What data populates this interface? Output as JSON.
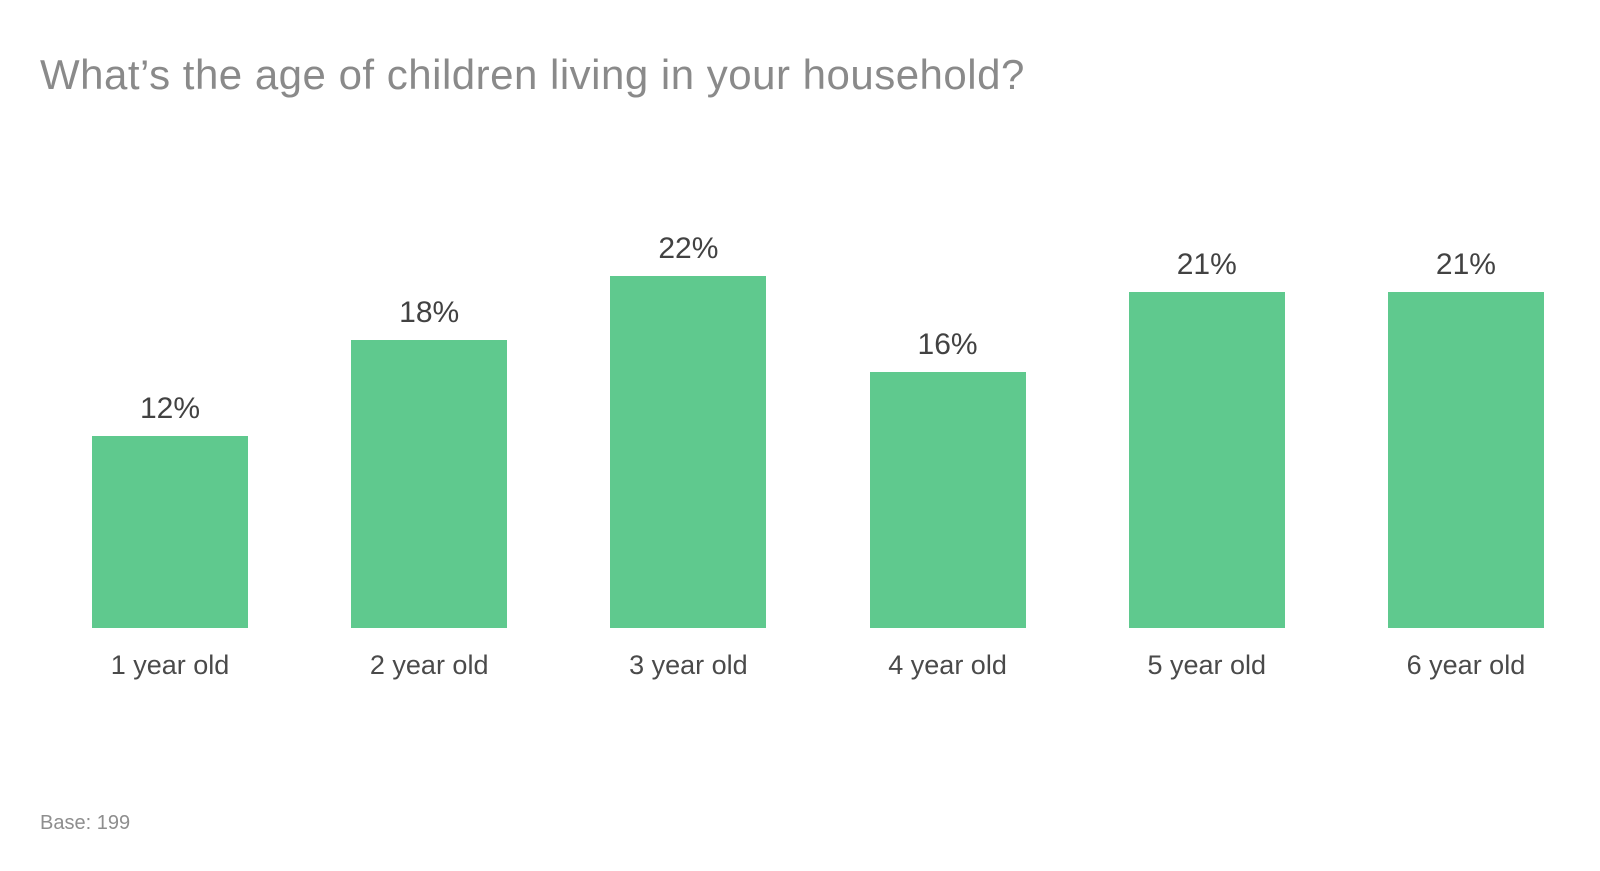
{
  "page": {
    "background": "#ffffff"
  },
  "header": {
    "title": "What’s the age of children living in your household?",
    "title_color": "#8a8a8a"
  },
  "footer": {
    "base_note": "Base: 199",
    "color": "#8e8e8e"
  },
  "chart_data": {
    "type": "bar",
    "title": "What’s the age of children living in your household?",
    "categories": [
      "1 year old",
      "2 year old",
      "3 year old",
      "4 year old",
      "5 year old",
      "6 year old"
    ],
    "values": [
      12,
      18,
      22,
      16,
      21,
      21
    ],
    "value_labels": [
      "12%",
      "18%",
      "22%",
      "16%",
      "21%",
      "21%"
    ],
    "unit": "%",
    "xlabel": "",
    "ylabel": "",
    "ylim": [
      0,
      25
    ],
    "grid": false,
    "axis_lines": false,
    "legend": "none",
    "bar_color": "#5fc98e",
    "value_label_color": "#424242",
    "category_label_color": "#4a4a4a",
    "base_note": "Base: 199"
  }
}
